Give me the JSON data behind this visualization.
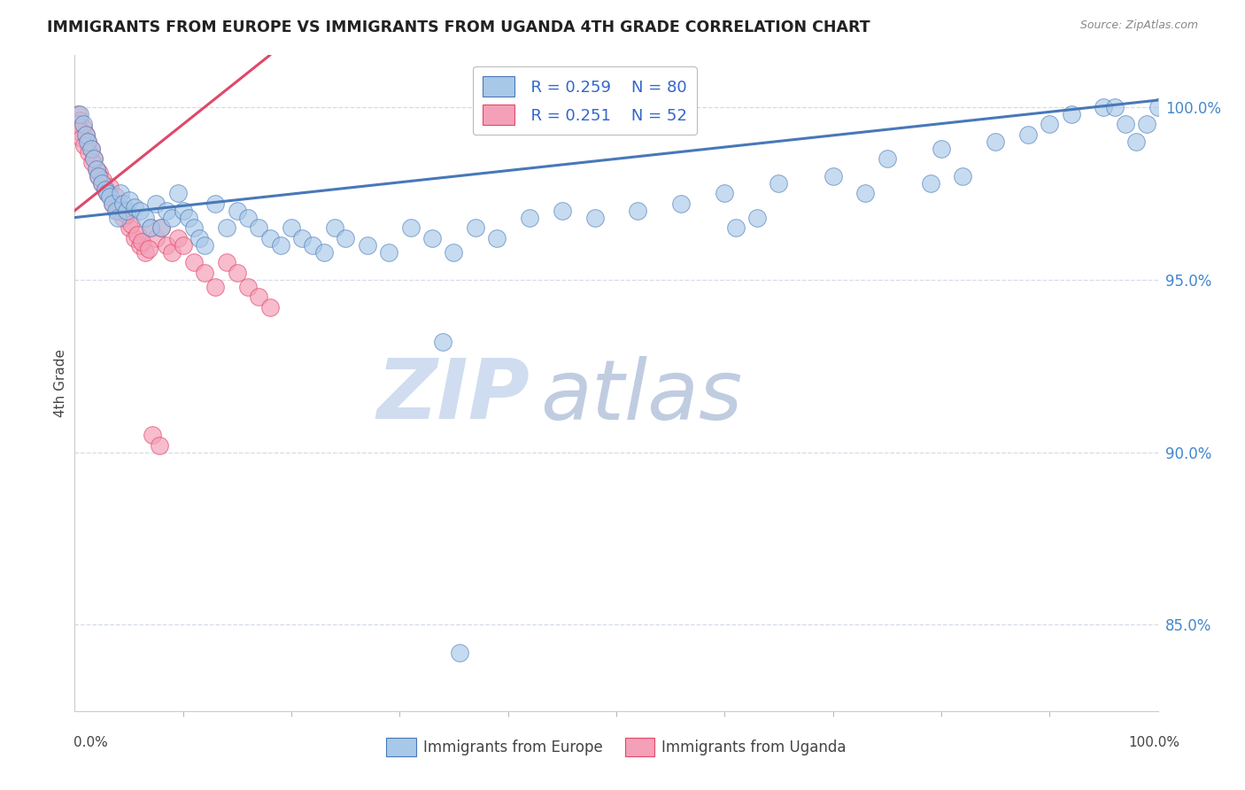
{
  "title": "IMMIGRANTS FROM EUROPE VS IMMIGRANTS FROM UGANDA 4TH GRADE CORRELATION CHART",
  "source": "Source: ZipAtlas.com",
  "ylabel": "4th Grade",
  "legend_europe_R": "R = 0.259",
  "legend_europe_N": "N = 80",
  "legend_uganda_R": "R = 0.251",
  "legend_uganda_N": "N = 52",
  "europe_color": "#a8c8e8",
  "uganda_color": "#f4a0b8",
  "europe_line_color": "#4878b8",
  "uganda_line_color": "#e04868",
  "blue_scatter_x": [
    0.5,
    0.8,
    1.0,
    1.2,
    1.5,
    1.8,
    2.0,
    2.2,
    2.5,
    2.8,
    3.0,
    3.2,
    3.5,
    3.8,
    4.0,
    4.2,
    4.5,
    4.8,
    5.0,
    5.5,
    6.0,
    6.5,
    7.0,
    7.5,
    8.0,
    8.5,
    9.0,
    9.5,
    10.0,
    10.5,
    11.0,
    11.5,
    12.0,
    13.0,
    14.0,
    15.0,
    16.0,
    17.0,
    18.0,
    19.0,
    20.0,
    21.0,
    22.0,
    23.0,
    24.0,
    25.0,
    27.0,
    29.0,
    31.0,
    33.0,
    35.0,
    37.0,
    39.0,
    42.0,
    45.0,
    48.0,
    52.0,
    56.0,
    60.0,
    65.0,
    70.0,
    75.0,
    80.0,
    85.0,
    88.0,
    90.0,
    92.0,
    95.0,
    96.0,
    97.0,
    98.0,
    99.0,
    100.0,
    73.0,
    79.0,
    82.0,
    61.0,
    63.0,
    34.0,
    35.5
  ],
  "blue_scatter_y": [
    99.8,
    99.5,
    99.2,
    99.0,
    98.8,
    98.5,
    98.2,
    98.0,
    97.8,
    97.6,
    97.5,
    97.4,
    97.2,
    97.0,
    96.8,
    97.5,
    97.2,
    97.0,
    97.3,
    97.1,
    97.0,
    96.8,
    96.5,
    97.2,
    96.5,
    97.0,
    96.8,
    97.5,
    97.0,
    96.8,
    96.5,
    96.2,
    96.0,
    97.2,
    96.5,
    97.0,
    96.8,
    96.5,
    96.2,
    96.0,
    96.5,
    96.2,
    96.0,
    95.8,
    96.5,
    96.2,
    96.0,
    95.8,
    96.5,
    96.2,
    95.8,
    96.5,
    96.2,
    96.8,
    97.0,
    96.8,
    97.0,
    97.2,
    97.5,
    97.8,
    98.0,
    98.5,
    98.8,
    99.0,
    99.2,
    99.5,
    99.8,
    100.0,
    100.0,
    99.5,
    99.0,
    99.5,
    100.0,
    97.5,
    97.8,
    98.0,
    96.5,
    96.8,
    93.2,
    84.2
  ],
  "pink_scatter_x": [
    0.3,
    0.5,
    0.8,
    1.0,
    1.2,
    1.5,
    1.8,
    2.0,
    2.2,
    2.5,
    2.8,
    3.0,
    3.5,
    4.0,
    4.5,
    5.0,
    5.5,
    6.0,
    6.5,
    7.0,
    7.5,
    8.0,
    8.5,
    9.0,
    9.5,
    10.0,
    11.0,
    12.0,
    13.0,
    14.0,
    15.0,
    16.0,
    17.0,
    18.0,
    0.2,
    0.4,
    0.6,
    0.9,
    1.3,
    1.6,
    2.3,
    2.6,
    3.2,
    3.8,
    4.2,
    4.8,
    5.2,
    5.8,
    6.2,
    6.8,
    7.2,
    7.8
  ],
  "pink_scatter_y": [
    99.8,
    99.6,
    99.4,
    99.2,
    99.0,
    98.8,
    98.5,
    98.2,
    98.0,
    97.8,
    97.6,
    97.5,
    97.2,
    97.0,
    96.8,
    96.5,
    96.2,
    96.0,
    95.8,
    96.5,
    96.2,
    96.5,
    96.0,
    95.8,
    96.2,
    96.0,
    95.5,
    95.2,
    94.8,
    95.5,
    95.2,
    94.8,
    94.5,
    94.2,
    99.5,
    99.3,
    99.1,
    98.9,
    98.7,
    98.4,
    98.1,
    97.9,
    97.7,
    97.4,
    97.1,
    96.9,
    96.6,
    96.3,
    96.1,
    95.9,
    90.5,
    90.2
  ],
  "blue_trend_x": [
    0.0,
    100.0
  ],
  "blue_trend_y": [
    96.8,
    100.2
  ],
  "pink_trend_x": [
    0.0,
    18.0
  ],
  "pink_trend_y": [
    97.0,
    101.5
  ],
  "xlim": [
    0.0,
    100.0
  ],
  "ylim": [
    82.5,
    101.5
  ],
  "ytick_vals": [
    85.0,
    90.0,
    95.0,
    100.0
  ],
  "ytick_labels": [
    "85.0%",
    "90.0%",
    "95.0%",
    "100.0%"
  ],
  "xtick_minor_positions": [
    10,
    20,
    30,
    40,
    50,
    60,
    70,
    80,
    90
  ],
  "grid_color": "#d4dce8",
  "watermark_zip": "ZIP",
  "watermark_atlas": "atlas",
  "watermark_color_zip": "#d0ddf0",
  "watermark_color_atlas": "#c0cce0"
}
